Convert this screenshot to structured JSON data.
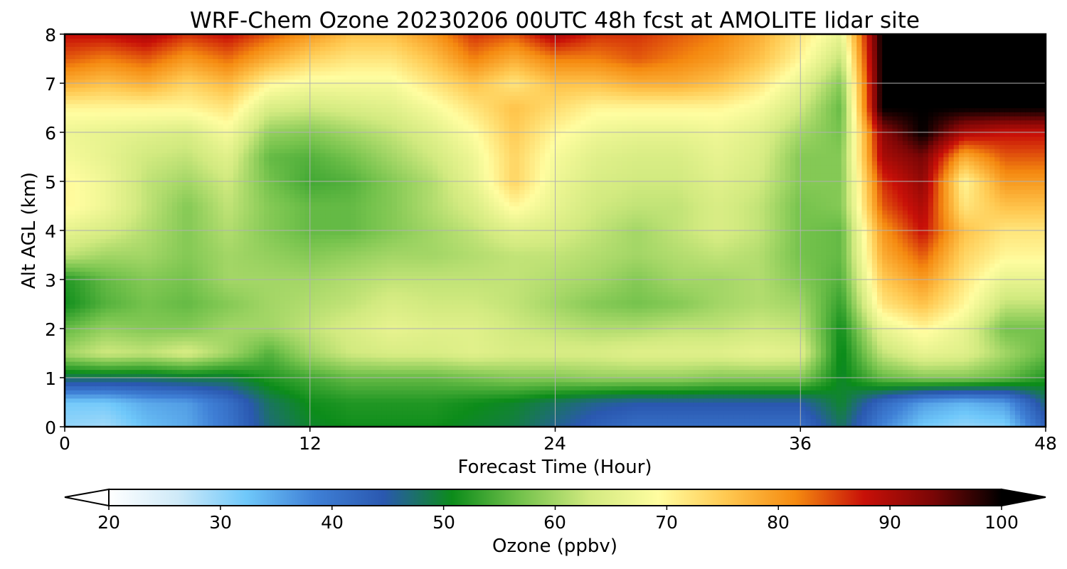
{
  "chart_data": {
    "type": "heatmap",
    "title": "WRF-Chem Ozone  20230206 00UTC 48h fcst at AMOLITE lidar site",
    "xlabel": "Forecast Time (Hour)",
    "ylabel": "Alt AGL (km)",
    "xlim": [
      0,
      48
    ],
    "ylim": [
      0,
      8
    ],
    "xticks": [
      "0",
      "12",
      "24",
      "36",
      "48"
    ],
    "yticks": [
      "0",
      "1",
      "2",
      "3",
      "4",
      "5",
      "6",
      "7",
      "8"
    ],
    "grid": true,
    "colorbar": {
      "label": "Ozone  (ppbv)",
      "range": [
        20,
        100
      ],
      "ticks": [
        "20",
        "30",
        "40",
        "50",
        "60",
        "70",
        "80",
        "90",
        "100"
      ],
      "extend": "both",
      "colors": [
        "#ffffff",
        "#cfeaf8",
        "#6fc8fa",
        "#3f80d6",
        "#2a58b0",
        "#0c8c1a",
        "#74c24c",
        "#d2ea80",
        "#fffda0",
        "#ffc850",
        "#f58a10",
        "#c81008",
        "#7a0606",
        "#000000"
      ]
    },
    "hours": [
      0,
      2,
      4,
      6,
      8,
      10,
      12,
      14,
      16,
      18,
      20,
      22,
      24,
      26,
      28,
      30,
      32,
      34,
      36,
      38,
      40,
      42,
      44,
      46,
      48
    ],
    "altitudes_km": [
      0.0,
      0.5,
      1.0,
      1.5,
      2.0,
      2.5,
      3.0,
      3.5,
      4.0,
      4.5,
      5.0,
      5.5,
      6.0,
      6.5,
      7.0,
      7.5,
      8.0
    ],
    "ozone_ppbv_by_altitude": [
      [
        30,
        29,
        33,
        35,
        40,
        47,
        50,
        51,
        51,
        51,
        50,
        49,
        46,
        43,
        41,
        41,
        41,
        41,
        41,
        48,
        38,
        32,
        30,
        31,
        43
      ],
      [
        32,
        32,
        35,
        36,
        41,
        48,
        51,
        52,
        52,
        52,
        51,
        50,
        48,
        46,
        45,
        45,
        45,
        45,
        45,
        50,
        42,
        36,
        34,
        36,
        47
      ],
      [
        48,
        48,
        48,
        49,
        49,
        52,
        54,
        56,
        56,
        56,
        57,
        58,
        58,
        59,
        59,
        59,
        58,
        58,
        58,
        50,
        56,
        58,
        58,
        56,
        52
      ],
      [
        60,
        63,
        62,
        64,
        60,
        55,
        60,
        63,
        64,
        64,
        65,
        64,
        64,
        64,
        65,
        65,
        65,
        66,
        65,
        50,
        62,
        66,
        65,
        60,
        56
      ],
      [
        56,
        59,
        58,
        58,
        60,
        60,
        62,
        64,
        66,
        65,
        65,
        63,
        62,
        61,
        61,
        62,
        62,
        63,
        62,
        51,
        66,
        70,
        66,
        57,
        57
      ],
      [
        51,
        55,
        57,
        56,
        58,
        60,
        61,
        62,
        64,
        63,
        63,
        62,
        60,
        58,
        57,
        58,
        60,
        61,
        60,
        53,
        72,
        76,
        70,
        62,
        62
      ],
      [
        52,
        56,
        58,
        57,
        60,
        60,
        60,
        61,
        62,
        62,
        62,
        62,
        61,
        60,
        58,
        60,
        60,
        61,
        58,
        55,
        75,
        80,
        72,
        66,
        66
      ],
      [
        62,
        60,
        60,
        58,
        60,
        59,
        58,
        59,
        60,
        60,
        61,
        62,
        62,
        61,
        60,
        61,
        62,
        61,
        57,
        56,
        78,
        84,
        74,
        70,
        70
      ],
      [
        66,
        64,
        61,
        58,
        61,
        58,
        56,
        56,
        58,
        60,
        62,
        65,
        64,
        62,
        60,
        62,
        64,
        62,
        57,
        56,
        80,
        88,
        76,
        72,
        72
      ],
      [
        70,
        67,
        62,
        58,
        62,
        58,
        56,
        56,
        58,
        61,
        64,
        70,
        66,
        63,
        62,
        62,
        64,
        62,
        57,
        58,
        84,
        90,
        72,
        76,
        76
      ],
      [
        70,
        67,
        62,
        60,
        63,
        57,
        54,
        55,
        58,
        61,
        66,
        74,
        67,
        64,
        63,
        63,
        65,
        63,
        58,
        58,
        86,
        92,
        70,
        80,
        80
      ],
      [
        68,
        66,
        63,
        62,
        65,
        56,
        55,
        57,
        60,
        63,
        67,
        74,
        68,
        65,
        64,
        64,
        66,
        64,
        58,
        58,
        90,
        94,
        78,
        84,
        84
      ],
      [
        67,
        66,
        65,
        64,
        68,
        59,
        58,
        60,
        62,
        65,
        69,
        75,
        70,
        67,
        66,
        66,
        67,
        65,
        60,
        57,
        92,
        100,
        90,
        88,
        88
      ],
      [
        70,
        70,
        70,
        70,
        72,
        64,
        63,
        64,
        65,
        68,
        72,
        76,
        73,
        70,
        70,
        70,
        70,
        68,
        63,
        56,
        100,
        100,
        100,
        100,
        100
      ],
      [
        78,
        76,
        78,
        74,
        77,
        70,
        68,
        68,
        68,
        72,
        76,
        72,
        76,
        76,
        78,
        78,
        76,
        72,
        66,
        58,
        100,
        100,
        100,
        100,
        100
      ],
      [
        84,
        82,
        84,
        80,
        83,
        78,
        74,
        72,
        72,
        76,
        82,
        78,
        82,
        82,
        84,
        82,
        80,
        76,
        70,
        62,
        100,
        100,
        100,
        100,
        100
      ],
      [
        88,
        88,
        90,
        86,
        88,
        84,
        80,
        76,
        76,
        80,
        86,
        84,
        90,
        86,
        86,
        84,
        82,
        78,
        72,
        66,
        100,
        100,
        100,
        100,
        100
      ]
    ]
  }
}
